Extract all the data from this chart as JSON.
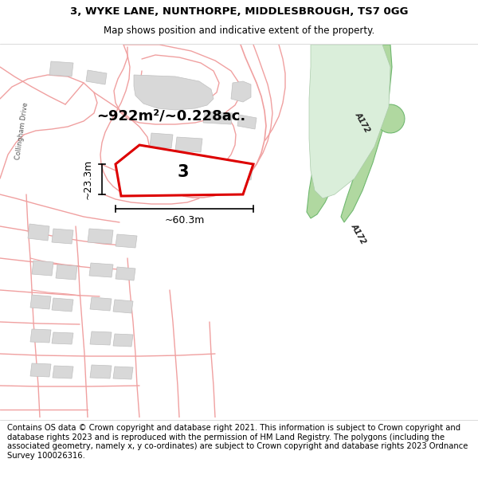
{
  "title_line1": "3, WYKE LANE, NUNTHORPE, MIDDLESBROUGH, TS7 0GG",
  "title_line2": "Map shows position and indicative extent of the property.",
  "area_text": "~922m²/~0.228ac.",
  "dim_width": "~60.3m",
  "dim_height": "~23.3m",
  "plot_label": "3",
  "road_label_top": "A172",
  "road_label_bot": "A172",
  "street_label": "Collingham Drive",
  "footer_text": "Contains OS data © Crown copyright and database right 2021. This information is subject to Crown copyright and database rights 2023 and is reproduced with the permission of HM Land Registry. The polygons (including the associated geometry, namely x, y co-ordinates) are subject to Crown copyright and database rights 2023 Ordnance Survey 100026316.",
  "bg_color": "#ffffff",
  "map_bg": "#ffffff",
  "plot_fill": "#ffffff",
  "plot_edge": "#dd0000",
  "plot_lw": 2.2,
  "street_color": "#f0a0a0",
  "street_fill": "#f5f5f5",
  "building_color": "#d8d8d8",
  "building_edge": "#c0c0c0",
  "green_light": "#daeeda",
  "green_dark": "#c0e0b8",
  "green_road": "#b0d8a0",
  "green_road_edge": "#70b870",
  "title_fontsize": 9.5,
  "subtitle_fontsize": 8.5,
  "footer_fontsize": 7.2,
  "area_fontsize": 13,
  "dim_fontsize": 9,
  "plot_label_fontsize": 15,
  "road_label_fontsize": 7,
  "street_label_fontsize": 6
}
